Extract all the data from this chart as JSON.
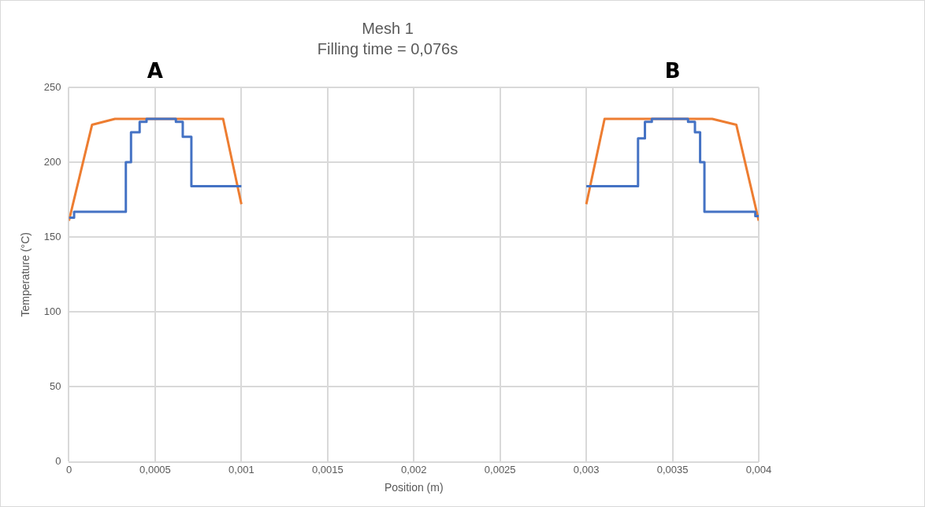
{
  "chart_data": {
    "type": "line",
    "title": "Mesh 1",
    "subtitle": "Filling time = 0,076s",
    "xlabel": "Position (m)",
    "ylabel": "Temperature (°C)",
    "xlim": [
      0,
      0.004
    ],
    "ylim": [
      0,
      250
    ],
    "xticks": [
      0,
      {
        "value": 0.0005,
        "label": "0,0005"
      },
      {
        "value": 0.001,
        "label": "0,001"
      },
      {
        "value": 0.0015,
        "label": "0,0015"
      },
      {
        "value": 0.002,
        "label": "0,002"
      },
      {
        "value": 0.0025,
        "label": "0,0025"
      },
      {
        "value": 0.003,
        "label": "0,003"
      },
      {
        "value": 0.0035,
        "label": "0,0035"
      },
      {
        "value": 0.004,
        "label": "0,004"
      }
    ],
    "yticks": [
      0,
      50,
      100,
      150,
      200,
      250
    ],
    "grid": true,
    "legend": false,
    "marker": "none",
    "line_style": "solid",
    "annotations": [
      "A",
      "B"
    ],
    "series": [
      {
        "color": "#4472c4",
        "x": [
          0,
          3e-05,
          3e-05,
          0.00033,
          0.00033,
          0.00036,
          0.00036,
          0.00041,
          0.00041,
          0.00045,
          0.00045,
          0.00062,
          0.00062,
          0.00066,
          0.00066,
          0.00071,
          0.00071,
          0.001,
          0.002,
          0.003,
          0.0033,
          0.0033,
          0.00334,
          0.00334,
          0.00338,
          0.00338,
          0.00359,
          0.00359,
          0.00363,
          0.00363,
          0.00366,
          0.00366,
          0.003685,
          0.003685,
          0.00398,
          0.00398,
          0.004
        ],
        "values": [
          163,
          163,
          167,
          167,
          200,
          200,
          220,
          220,
          227,
          227,
          229,
          229,
          227,
          227,
          217,
          217,
          184,
          184,
          null,
          184,
          184,
          216,
          216,
          227,
          227,
          229,
          229,
          227,
          227,
          220,
          220,
          200,
          200,
          167,
          167,
          164,
          164
        ]
      },
      {
        "color": "#ed7d31",
        "x": [
          0,
          0.000134,
          0.000267,
          0.000894,
          0.001,
          0.002,
          0.003,
          0.003106,
          0.00373,
          0.00387,
          0.004
        ],
        "values": [
          161,
          225,
          229,
          229,
          172,
          null,
          172,
          229,
          229,
          225,
          161
        ]
      }
    ]
  }
}
